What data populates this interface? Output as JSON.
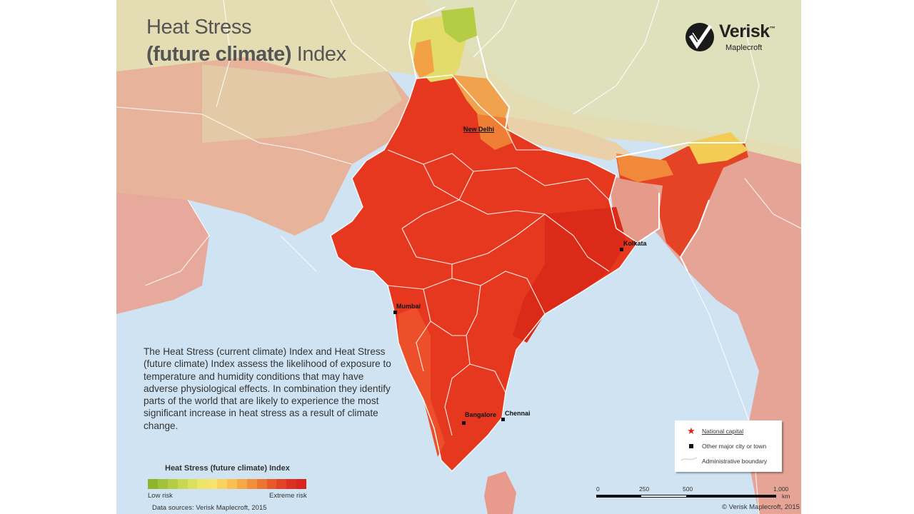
{
  "title": {
    "line1": "Heat Stress",
    "line2_bold": "(future climate)",
    "line2_rest": " Index"
  },
  "logo": {
    "name": "Verisk",
    "trademark": "™",
    "sub": "Maplecroft"
  },
  "description": "The Heat Stress (current climate) Index and Heat Stress (future climate) Index assess the likelihood of exposure to temperature and humidity conditions that may have adverse physiological effects. In combination they identify parts of the world that are likely to experience the most significant increase in heat stress as a result of climate change.",
  "legend": {
    "title": "Heat Stress (future climate) Index",
    "low_label": "Low risk",
    "high_label": "Extreme risk",
    "colors": [
      "#8fb52d",
      "#a2c23a",
      "#b5cd45",
      "#c8d851",
      "#dbe05d",
      "#ede567",
      "#f7e36b",
      "#f9d25f",
      "#f9bf52",
      "#f6a845",
      "#f28f3b",
      "#ed7532",
      "#e85a2b",
      "#e34326",
      "#dc3022",
      "#d8261f"
    ]
  },
  "sources": "Data sources: Verisk Maplecroft, 2015",
  "cities": {
    "new_delhi": "New Delhi",
    "kolkata": "Kolkata",
    "mumbai": "Mumbai",
    "chennai": "Chennai",
    "bangalore": "Bangalore"
  },
  "key": {
    "capital": "National capital",
    "city": "Other major city or town",
    "boundary": "Administrative boundary"
  },
  "scale": {
    "labels": [
      "0",
      "250",
      "500",
      "1,000"
    ],
    "unit": "km"
  },
  "copyright": "© Verisk Maplecroft, 2015",
  "colors": {
    "sea": "#cfe3f3",
    "extreme": "#e2321d",
    "high": "#ec4b26",
    "orange": "#f08a3a",
    "yellow": "#f5dc6a",
    "green": "#b8cf4a",
    "land_pale": "#e9d5a6",
    "land_pink": "#e7a79a",
    "land_pale_green": "#dfe0bc",
    "text": "#333333"
  }
}
